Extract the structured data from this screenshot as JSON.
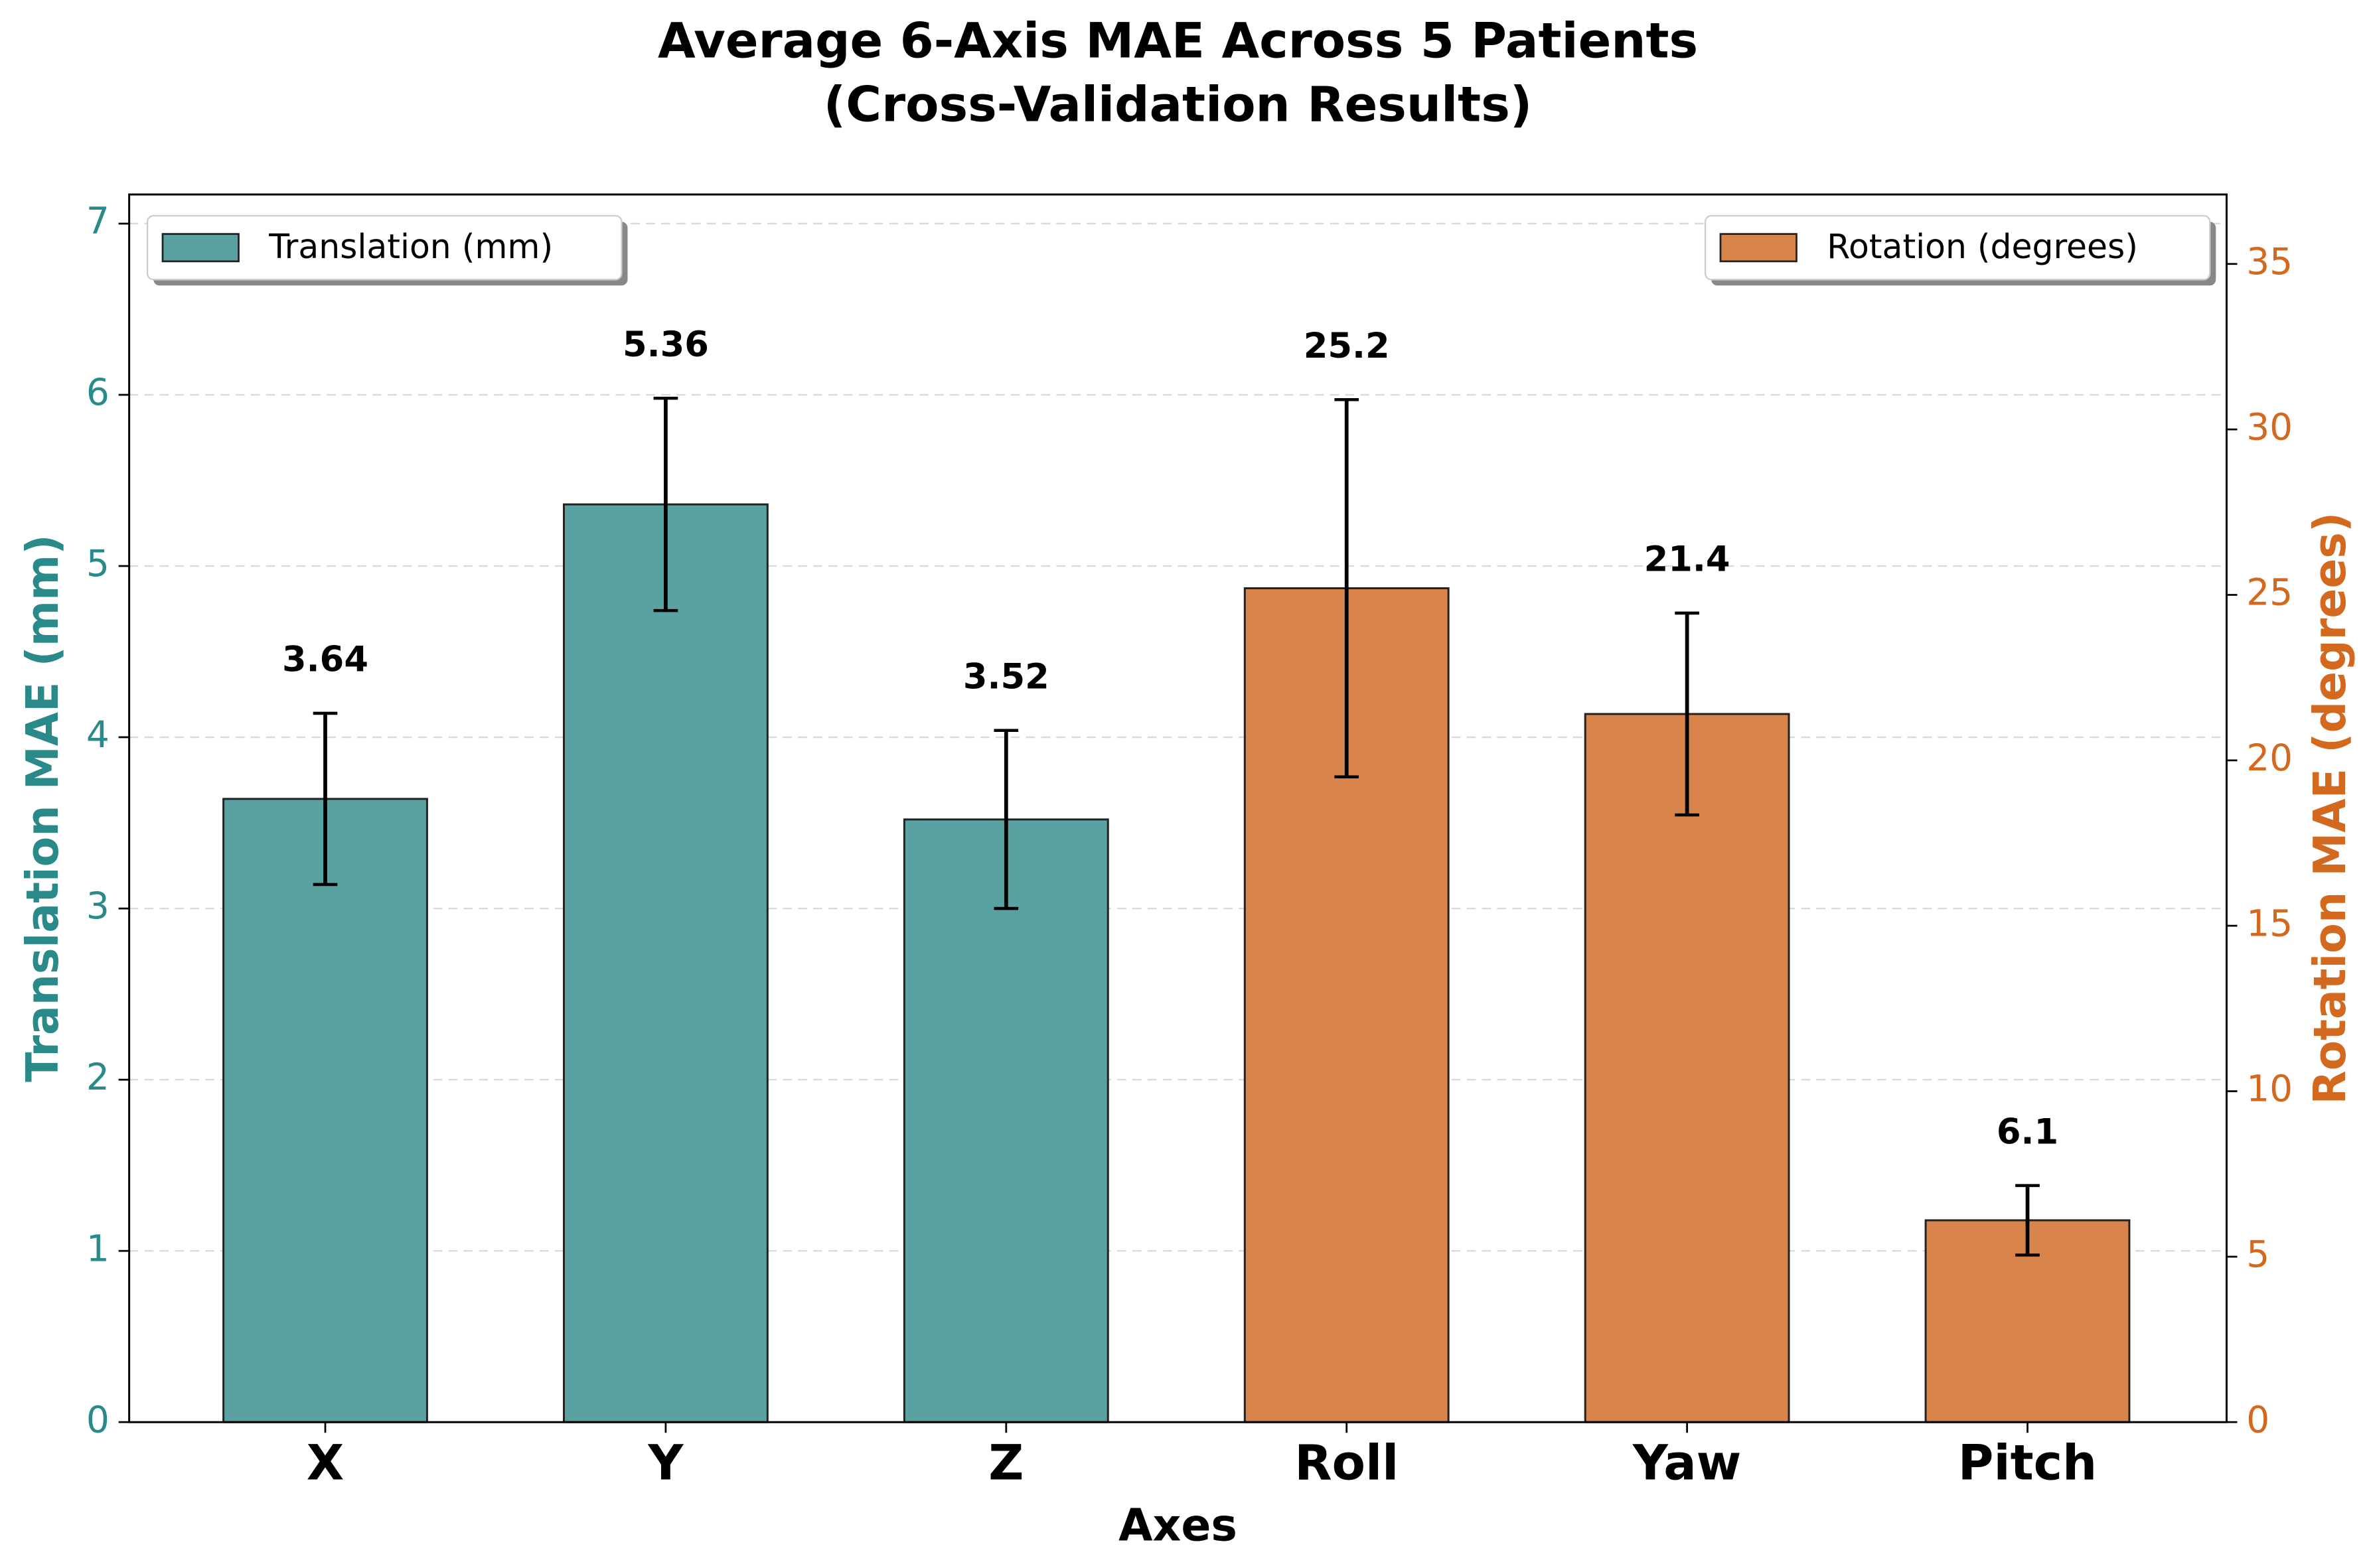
{
  "chart_data": {
    "type": "bar",
    "title": "Average 6-Axis MAE Across 5 Patients",
    "subtitle": "(Cross-Validation Results)",
    "x_label": "Axes",
    "y_label": "Translation MAE (mm)",
    "y2_label": "Rotation MAE (degrees)",
    "y_label_color": "#2a8a8a",
    "y2_label_color": "#d2691e",
    "categories": [
      "X",
      "Y",
      "Z",
      "Roll",
      "Yaw",
      "Pitch"
    ],
    "series": [
      {
        "name": "Translation (mm)",
        "color": "#5aa2a2",
        "axis": "y",
        "legend": "upper left",
        "values": [
          3.64,
          5.36,
          3.52,
          null,
          null,
          null
        ],
        "errors": [
          0.5,
          0.62,
          0.52,
          null,
          null,
          null
        ]
      },
      {
        "name": "Rotation (degrees)",
        "color": "#d9844a",
        "axis": "y2",
        "legend": "upper right",
        "values": [
          null,
          null,
          null,
          25.2,
          21.4,
          6.1
        ],
        "errors": [
          null,
          null,
          null,
          5.7,
          3.05,
          1.05
        ]
      }
    ],
    "ylim": [
      0,
      7.17
    ],
    "yticks": [
      0,
      1,
      2,
      3,
      4,
      5,
      6,
      7
    ],
    "y2lim": [
      0,
      37.1
    ],
    "y2ticks": [
      0,
      5,
      10,
      15,
      20,
      25,
      30,
      35
    ],
    "grid": true
  }
}
